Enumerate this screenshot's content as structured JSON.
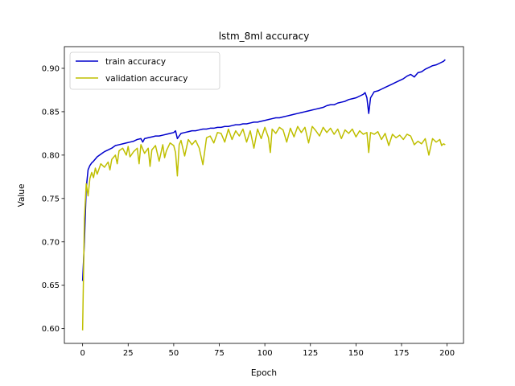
{
  "chart_data": {
    "type": "line",
    "title": "lstm_8ml accuracy",
    "xlabel": "Epoch",
    "ylabel": "Value",
    "xlim": [
      -10,
      209
    ],
    "ylim": [
      0.583,
      0.925
    ],
    "xticks": [
      0,
      25,
      50,
      75,
      100,
      125,
      150,
      175,
      200
    ],
    "yticks": [
      0.6,
      0.65,
      0.7,
      0.75,
      0.8,
      0.85,
      0.9
    ],
    "grid": false,
    "legend_position": "top-left",
    "series": [
      {
        "name": "train accuracy",
        "color": "#0000cc",
        "points": [
          [
            0,
            0.655
          ],
          [
            1,
            0.7
          ],
          [
            2,
            0.762
          ],
          [
            3,
            0.783
          ],
          [
            4,
            0.788
          ],
          [
            5,
            0.791
          ],
          [
            6,
            0.793
          ],
          [
            8,
            0.798
          ],
          [
            10,
            0.801
          ],
          [
            12,
            0.804
          ],
          [
            14,
            0.806
          ],
          [
            16,
            0.808
          ],
          [
            18,
            0.811
          ],
          [
            20,
            0.812
          ],
          [
            22,
            0.813
          ],
          [
            24,
            0.814
          ],
          [
            26,
            0.815
          ],
          [
            28,
            0.816
          ],
          [
            30,
            0.818
          ],
          [
            32,
            0.819
          ],
          [
            33,
            0.815
          ],
          [
            34,
            0.819
          ],
          [
            36,
            0.82
          ],
          [
            38,
            0.821
          ],
          [
            40,
            0.822
          ],
          [
            42,
            0.822
          ],
          [
            44,
            0.823
          ],
          [
            46,
            0.824
          ],
          [
            48,
            0.825
          ],
          [
            50,
            0.826
          ],
          [
            51,
            0.828
          ],
          [
            52,
            0.819
          ],
          [
            53,
            0.822
          ],
          [
            54,
            0.825
          ],
          [
            56,
            0.826
          ],
          [
            58,
            0.827
          ],
          [
            60,
            0.828
          ],
          [
            62,
            0.828
          ],
          [
            64,
            0.829
          ],
          [
            66,
            0.83
          ],
          [
            68,
            0.83
          ],
          [
            70,
            0.831
          ],
          [
            72,
            0.831
          ],
          [
            74,
            0.832
          ],
          [
            76,
            0.832
          ],
          [
            78,
            0.833
          ],
          [
            80,
            0.833
          ],
          [
            82,
            0.834
          ],
          [
            84,
            0.835
          ],
          [
            86,
            0.835
          ],
          [
            88,
            0.836
          ],
          [
            90,
            0.836
          ],
          [
            92,
            0.837
          ],
          [
            94,
            0.838
          ],
          [
            96,
            0.838
          ],
          [
            98,
            0.839
          ],
          [
            100,
            0.84
          ],
          [
            102,
            0.841
          ],
          [
            104,
            0.842
          ],
          [
            106,
            0.843
          ],
          [
            108,
            0.843
          ],
          [
            110,
            0.844
          ],
          [
            112,
            0.845
          ],
          [
            114,
            0.846
          ],
          [
            116,
            0.847
          ],
          [
            118,
            0.848
          ],
          [
            120,
            0.849
          ],
          [
            122,
            0.85
          ],
          [
            124,
            0.851
          ],
          [
            126,
            0.852
          ],
          [
            128,
            0.853
          ],
          [
            130,
            0.854
          ],
          [
            132,
            0.855
          ],
          [
            134,
            0.857
          ],
          [
            136,
            0.858
          ],
          [
            138,
            0.858
          ],
          [
            140,
            0.86
          ],
          [
            142,
            0.861
          ],
          [
            144,
            0.862
          ],
          [
            146,
            0.864
          ],
          [
            148,
            0.865
          ],
          [
            150,
            0.866
          ],
          [
            152,
            0.868
          ],
          [
            154,
            0.87
          ],
          [
            155,
            0.872
          ],
          [
            156,
            0.866
          ],
          [
            157,
            0.848
          ],
          [
            158,
            0.866
          ],
          [
            160,
            0.873
          ],
          [
            162,
            0.874
          ],
          [
            164,
            0.876
          ],
          [
            166,
            0.878
          ],
          [
            168,
            0.88
          ],
          [
            170,
            0.882
          ],
          [
            172,
            0.884
          ],
          [
            174,
            0.886
          ],
          [
            176,
            0.888
          ],
          [
            178,
            0.891
          ],
          [
            180,
            0.893
          ],
          [
            182,
            0.89
          ],
          [
            184,
            0.895
          ],
          [
            186,
            0.896
          ],
          [
            188,
            0.899
          ],
          [
            190,
            0.901
          ],
          [
            192,
            0.903
          ],
          [
            194,
            0.904
          ],
          [
            196,
            0.906
          ],
          [
            198,
            0.908
          ],
          [
            199,
            0.91
          ]
        ]
      },
      {
        "name": "validation accuracy",
        "color": "#bfbf00",
        "points": [
          [
            0,
            0.598
          ],
          [
            1,
            0.727
          ],
          [
            2,
            0.767
          ],
          [
            3,
            0.753
          ],
          [
            4,
            0.773
          ],
          [
            5,
            0.78
          ],
          [
            6,
            0.774
          ],
          [
            7,
            0.785
          ],
          [
            8,
            0.778
          ],
          [
            10,
            0.79
          ],
          [
            12,
            0.786
          ],
          [
            14,
            0.792
          ],
          [
            15,
            0.783
          ],
          [
            16,
            0.795
          ],
          [
            18,
            0.8
          ],
          [
            19,
            0.79
          ],
          [
            20,
            0.805
          ],
          [
            22,
            0.808
          ],
          [
            24,
            0.8
          ],
          [
            25,
            0.81
          ],
          [
            26,
            0.798
          ],
          [
            28,
            0.804
          ],
          [
            30,
            0.808
          ],
          [
            31,
            0.79
          ],
          [
            32,
            0.812
          ],
          [
            34,
            0.802
          ],
          [
            36,
            0.808
          ],
          [
            37,
            0.787
          ],
          [
            38,
            0.806
          ],
          [
            40,
            0.811
          ],
          [
            42,
            0.793
          ],
          [
            44,
            0.812
          ],
          [
            45,
            0.797
          ],
          [
            46,
            0.805
          ],
          [
            48,
            0.814
          ],
          [
            50,
            0.811
          ],
          [
            51,
            0.803
          ],
          [
            52,
            0.776
          ],
          [
            53,
            0.812
          ],
          [
            54,
            0.817
          ],
          [
            56,
            0.799
          ],
          [
            58,
            0.818
          ],
          [
            60,
            0.812
          ],
          [
            62,
            0.817
          ],
          [
            64,
            0.808
          ],
          [
            66,
            0.789
          ],
          [
            68,
            0.82
          ],
          [
            70,
            0.822
          ],
          [
            72,
            0.814
          ],
          [
            74,
            0.826
          ],
          [
            76,
            0.825
          ],
          [
            78,
            0.815
          ],
          [
            80,
            0.83
          ],
          [
            82,
            0.818
          ],
          [
            84,
            0.828
          ],
          [
            86,
            0.822
          ],
          [
            88,
            0.83
          ],
          [
            90,
            0.815
          ],
          [
            92,
            0.828
          ],
          [
            94,
            0.808
          ],
          [
            96,
            0.83
          ],
          [
            98,
            0.819
          ],
          [
            100,
            0.832
          ],
          [
            102,
            0.82
          ],
          [
            103,
            0.803
          ],
          [
            104,
            0.83
          ],
          [
            106,
            0.825
          ],
          [
            108,
            0.832
          ],
          [
            110,
            0.829
          ],
          [
            112,
            0.815
          ],
          [
            114,
            0.831
          ],
          [
            116,
            0.821
          ],
          [
            118,
            0.833
          ],
          [
            120,
            0.826
          ],
          [
            122,
            0.832
          ],
          [
            124,
            0.814
          ],
          [
            126,
            0.833
          ],
          [
            128,
            0.828
          ],
          [
            130,
            0.822
          ],
          [
            132,
            0.832
          ],
          [
            134,
            0.826
          ],
          [
            136,
            0.831
          ],
          [
            138,
            0.824
          ],
          [
            140,
            0.83
          ],
          [
            142,
            0.819
          ],
          [
            144,
            0.829
          ],
          [
            146,
            0.825
          ],
          [
            148,
            0.83
          ],
          [
            150,
            0.821
          ],
          [
            152,
            0.828
          ],
          [
            154,
            0.824
          ],
          [
            156,
            0.826
          ],
          [
            157,
            0.803
          ],
          [
            158,
            0.826
          ],
          [
            160,
            0.824
          ],
          [
            162,
            0.827
          ],
          [
            164,
            0.818
          ],
          [
            166,
            0.825
          ],
          [
            168,
            0.811
          ],
          [
            170,
            0.824
          ],
          [
            172,
            0.82
          ],
          [
            174,
            0.823
          ],
          [
            176,
            0.818
          ],
          [
            178,
            0.824
          ],
          [
            180,
            0.822
          ],
          [
            182,
            0.812
          ],
          [
            184,
            0.816
          ],
          [
            186,
            0.813
          ],
          [
            188,
            0.819
          ],
          [
            190,
            0.8
          ],
          [
            192,
            0.819
          ],
          [
            194,
            0.815
          ],
          [
            196,
            0.818
          ],
          [
            197,
            0.811
          ],
          [
            198,
            0.813
          ],
          [
            199,
            0.812
          ]
        ]
      }
    ]
  }
}
